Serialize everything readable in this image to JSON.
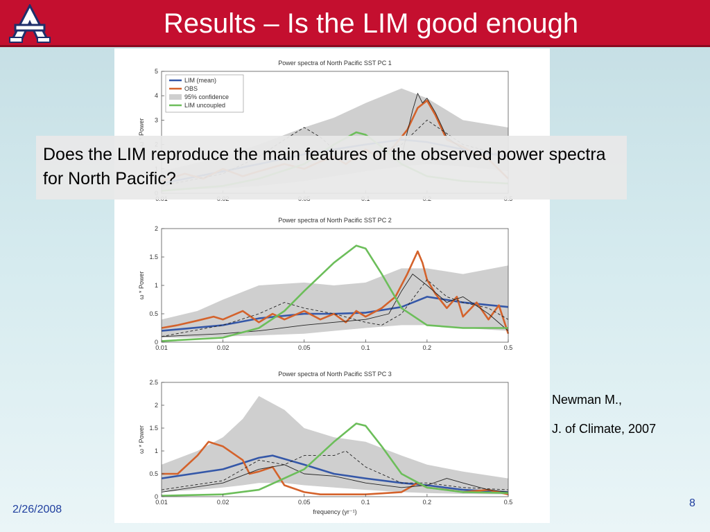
{
  "slide": {
    "title": "Results – Is the LIM good enough",
    "question": "Does the LIM reproduce the main features of the observed power spectra for North Pacific?",
    "citation_author": "Newman M.,",
    "citation_journal": "J. of Climate, 2007",
    "date": "2/26/2008",
    "page_number": "8",
    "header_color": "#c40f2f",
    "logo_icon": "university-a-logo-icon"
  },
  "chart_data": [
    {
      "type": "line",
      "title": "Power spectra of North Pacific SST PC 1",
      "xlabel": "",
      "ylabel": "ω * Power",
      "xscale": "log",
      "xlim": [
        0.01,
        0.5
      ],
      "ylim": [
        0,
        5
      ],
      "xticks": [
        "0.01",
        "0.02",
        "0.05",
        "0.1",
        "0.2",
        "0.5"
      ],
      "yticks": [
        "0",
        "1",
        "2",
        "3",
        "4",
        "5"
      ],
      "legend": {
        "placement": "top-left",
        "entries": [
          "LIM (mean)",
          "OBS",
          "95% confidence",
          "LIM uncoupled"
        ]
      },
      "confidence_band": {
        "x": [
          0.01,
          0.02,
          0.03,
          0.05,
          0.07,
          0.1,
          0.15,
          0.2,
          0.3,
          0.5
        ],
        "lower": [
          0.1,
          0.2,
          0.3,
          0.5,
          0.7,
          0.9,
          1.1,
          1.2,
          1.1,
          0.9
        ],
        "upper": [
          0.9,
          1.5,
          2.0,
          2.7,
          3.1,
          3.7,
          4.3,
          3.9,
          3.0,
          2.7
        ]
      },
      "series": [
        {
          "name": "LIM (mean)",
          "color": "#3457a8",
          "style": "thick",
          "x": [
            0.01,
            0.02,
            0.03,
            0.05,
            0.07,
            0.1,
            0.15,
            0.2,
            0.3,
            0.5
          ],
          "y": [
            0.4,
            0.9,
            1.2,
            1.6,
            1.8,
            2.0,
            2.2,
            2.1,
            1.8,
            1.5
          ]
        },
        {
          "name": "OBS",
          "color": "#d4622b",
          "style": "thick",
          "x": [
            0.01,
            0.013,
            0.016,
            0.02,
            0.025,
            0.03,
            0.04,
            0.05,
            0.06,
            0.07,
            0.08,
            0.1,
            0.12,
            0.14,
            0.16,
            0.18,
            0.2,
            0.22,
            0.25,
            0.3,
            0.35,
            0.4,
            0.5
          ],
          "y": [
            0.5,
            0.8,
            0.6,
            1.0,
            0.7,
            0.9,
            1.2,
            1.0,
            1.3,
            1.5,
            1.2,
            1.8,
            1.4,
            2.0,
            2.6,
            3.5,
            3.8,
            3.2,
            2.2,
            1.9,
            1.6,
            1.4,
            0.6
          ]
        },
        {
          "name": "",
          "color": "#222222",
          "style": "thin-solid",
          "x": [
            0.15,
            0.16,
            0.17,
            0.18,
            0.19,
            0.2,
            0.22,
            0.25,
            0.3
          ],
          "y": [
            1.5,
            2.5,
            3.4,
            4.1,
            3.7,
            3.9,
            3.3,
            2.3,
            1.8
          ]
        },
        {
          "name": "",
          "color": "#222222",
          "style": "thin-dashed",
          "x": [
            0.01,
            0.02,
            0.03,
            0.04,
            0.05,
            0.06,
            0.07,
            0.1,
            0.15,
            0.2,
            0.3,
            0.5
          ],
          "y": [
            0.3,
            0.8,
            1.5,
            2.2,
            2.7,
            2.3,
            1.8,
            1.6,
            2.0,
            3.0,
            2.0,
            1.5
          ]
        },
        {
          "name": "LIM uncoupled",
          "color": "#6cbe5a",
          "style": "thick",
          "x": [
            0.01,
            0.02,
            0.03,
            0.05,
            0.07,
            0.09,
            0.1,
            0.12,
            0.15,
            0.2,
            0.3,
            0.5
          ],
          "y": [
            0.1,
            0.3,
            0.6,
            1.2,
            2.0,
            2.5,
            2.4,
            1.9,
            1.2,
            0.7,
            0.5,
            0.4
          ]
        }
      ]
    },
    {
      "type": "line",
      "title": "Power spectra of North Pacific SST PC 2",
      "xlabel": "",
      "ylabel": "ω * Power",
      "xscale": "log",
      "xlim": [
        0.01,
        0.5
      ],
      "ylim": [
        0,
        2
      ],
      "xticks": [
        "0.01",
        "0.02",
        "0.05",
        "0.1",
        "0.2",
        "0.5"
      ],
      "yticks": [
        "0",
        "0.5",
        "1",
        "1.5",
        "2"
      ],
      "confidence_band": {
        "x": [
          0.01,
          0.015,
          0.02,
          0.03,
          0.05,
          0.07,
          0.1,
          0.15,
          0.2,
          0.3,
          0.5
        ],
        "lower": [
          0.08,
          0.08,
          0.1,
          0.12,
          0.15,
          0.2,
          0.25,
          0.3,
          0.3,
          0.25,
          0.2
        ],
        "upper": [
          0.4,
          0.55,
          0.75,
          1.0,
          1.05,
          1.0,
          1.05,
          1.3,
          1.3,
          1.2,
          1.35
        ]
      },
      "series": [
        {
          "name": "LIM (mean)",
          "color": "#3457a8",
          "style": "thick",
          "x": [
            0.01,
            0.02,
            0.03,
            0.05,
            0.07,
            0.1,
            0.15,
            0.2,
            0.3,
            0.5
          ],
          "y": [
            0.2,
            0.3,
            0.42,
            0.5,
            0.5,
            0.52,
            0.62,
            0.8,
            0.7,
            0.62
          ]
        },
        {
          "name": "OBS",
          "color": "#d4622b",
          "style": "thick",
          "x": [
            0.01,
            0.012,
            0.015,
            0.018,
            0.02,
            0.025,
            0.03,
            0.035,
            0.04,
            0.05,
            0.06,
            0.07,
            0.08,
            0.09,
            0.1,
            0.12,
            0.14,
            0.16,
            0.18,
            0.19,
            0.2,
            0.22,
            0.25,
            0.28,
            0.3,
            0.35,
            0.4,
            0.45,
            0.5
          ],
          "y": [
            0.25,
            0.3,
            0.38,
            0.45,
            0.4,
            0.55,
            0.35,
            0.5,
            0.4,
            0.55,
            0.4,
            0.5,
            0.35,
            0.55,
            0.45,
            0.6,
            0.8,
            1.2,
            1.6,
            1.4,
            1.1,
            0.85,
            0.6,
            0.8,
            0.45,
            0.7,
            0.4,
            0.65,
            0.15
          ]
        },
        {
          "name": "",
          "color": "#222222",
          "style": "thin-solid",
          "x": [
            0.01,
            0.02,
            0.03,
            0.05,
            0.07,
            0.1,
            0.13,
            0.15,
            0.17,
            0.2,
            0.25,
            0.3,
            0.4,
            0.5
          ],
          "y": [
            0.1,
            0.15,
            0.2,
            0.3,
            0.35,
            0.4,
            0.5,
            0.9,
            1.2,
            1.0,
            0.7,
            0.8,
            0.5,
            0.2
          ]
        },
        {
          "name": "",
          "color": "#222222",
          "style": "thin-dashed",
          "x": [
            0.01,
            0.02,
            0.03,
            0.04,
            0.05,
            0.07,
            0.1,
            0.12,
            0.15,
            0.2,
            0.25,
            0.3,
            0.4,
            0.5
          ],
          "y": [
            0.1,
            0.3,
            0.5,
            0.7,
            0.6,
            0.5,
            0.35,
            0.3,
            0.5,
            1.1,
            0.8,
            0.7,
            0.6,
            0.4
          ]
        },
        {
          "name": "LIM uncoupled",
          "color": "#6cbe5a",
          "style": "thick",
          "x": [
            0.01,
            0.02,
            0.03,
            0.04,
            0.05,
            0.07,
            0.09,
            0.1,
            0.12,
            0.15,
            0.2,
            0.3,
            0.5
          ],
          "y": [
            0.02,
            0.08,
            0.25,
            0.55,
            0.9,
            1.4,
            1.7,
            1.65,
            1.2,
            0.6,
            0.3,
            0.25,
            0.25
          ]
        }
      ]
    },
    {
      "type": "line",
      "title": "Power spectra of North Pacific SST PC 3",
      "xlabel": "frequency (yr⁻¹)",
      "ylabel": "ω * Power",
      "xscale": "log",
      "xlim": [
        0.01,
        0.5
      ],
      "ylim": [
        0,
        2.5
      ],
      "xticks": [
        "0.01",
        "0.02",
        "0.05",
        "0.1",
        "0.2",
        "0.5"
      ],
      "yticks": [
        "0",
        "0.5",
        "1",
        "1.5",
        "2",
        "2.5"
      ],
      "confidence_band": {
        "x": [
          0.01,
          0.015,
          0.02,
          0.025,
          0.03,
          0.04,
          0.05,
          0.07,
          0.1,
          0.15,
          0.2,
          0.3,
          0.5
        ],
        "lower": [
          0.1,
          0.15,
          0.2,
          0.25,
          0.3,
          0.3,
          0.25,
          0.2,
          0.15,
          0.1,
          0.08,
          0.06,
          0.05
        ],
        "upper": [
          0.7,
          1.0,
          1.3,
          1.7,
          2.2,
          1.9,
          1.5,
          1.3,
          1.2,
          0.9,
          0.7,
          0.55,
          0.4
        ]
      },
      "series": [
        {
          "name": "LIM (mean)",
          "color": "#3457a8",
          "style": "thick",
          "x": [
            0.01,
            0.02,
            0.03,
            0.035,
            0.05,
            0.07,
            0.1,
            0.15,
            0.2,
            0.3,
            0.5
          ],
          "y": [
            0.4,
            0.6,
            0.85,
            0.9,
            0.7,
            0.5,
            0.4,
            0.3,
            0.25,
            0.15,
            0.1
          ]
        },
        {
          "name": "OBS",
          "color": "#d4622b",
          "style": "thick",
          "x": [
            0.01,
            0.012,
            0.015,
            0.017,
            0.02,
            0.025,
            0.027,
            0.03,
            0.035,
            0.04,
            0.05,
            0.06,
            0.07,
            0.1,
            0.15,
            0.18,
            0.2,
            0.25,
            0.3,
            0.4,
            0.5
          ],
          "y": [
            0.5,
            0.5,
            0.9,
            1.2,
            1.1,
            0.8,
            0.5,
            0.55,
            0.65,
            0.25,
            0.1,
            0.05,
            0.05,
            0.05,
            0.1,
            0.3,
            0.2,
            0.15,
            0.1,
            0.15,
            0.05
          ]
        },
        {
          "name": "",
          "color": "#222222",
          "style": "thin-solid",
          "x": [
            0.01,
            0.02,
            0.03,
            0.04,
            0.05,
            0.07,
            0.1,
            0.15,
            0.2,
            0.25,
            0.3,
            0.4,
            0.5
          ],
          "y": [
            0.1,
            0.3,
            0.6,
            0.7,
            0.5,
            0.45,
            0.3,
            0.2,
            0.25,
            0.4,
            0.3,
            0.15,
            0.1
          ]
        },
        {
          "name": "",
          "color": "#222222",
          "style": "thin-dashed",
          "x": [
            0.01,
            0.02,
            0.03,
            0.04,
            0.05,
            0.07,
            0.08,
            0.1,
            0.15,
            0.2,
            0.3,
            0.5
          ],
          "y": [
            0.15,
            0.35,
            0.8,
            0.7,
            0.9,
            0.9,
            1.0,
            0.65,
            0.3,
            0.3,
            0.2,
            0.15
          ]
        },
        {
          "name": "LIM uncoupled",
          "color": "#6cbe5a",
          "style": "thick",
          "x": [
            0.01,
            0.02,
            0.03,
            0.05,
            0.07,
            0.09,
            0.1,
            0.12,
            0.15,
            0.2,
            0.3,
            0.5
          ],
          "y": [
            0.02,
            0.05,
            0.15,
            0.6,
            1.2,
            1.6,
            1.55,
            1.1,
            0.5,
            0.2,
            0.1,
            0.08
          ]
        }
      ]
    }
  ]
}
